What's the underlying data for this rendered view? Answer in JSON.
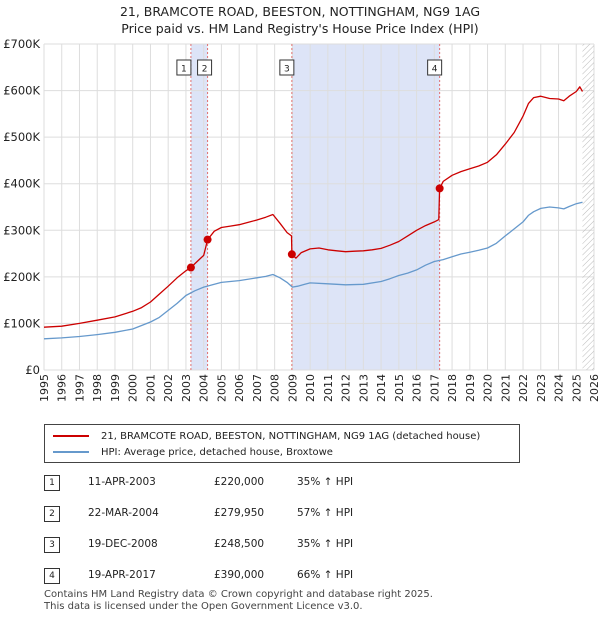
{
  "title_line1": "21, BRAMCOTE ROAD, BEESTON, NOTTINGHAM, NG9 1AG",
  "title_line2": "Price paid vs. HM Land Registry's House Price Index (HPI)",
  "chart_data": {
    "type": "line",
    "title": "21, BRAMCOTE ROAD, BEESTON, NOTTINGHAM, NG9 1AG — Price paid vs. HM Land Registry's House Price Index (HPI)",
    "xlim": [
      1995,
      2026
    ],
    "ylim": [
      0,
      700000
    ],
    "y_ticks": [
      0,
      100000,
      200000,
      300000,
      400000,
      500000,
      600000,
      700000
    ],
    "y_tick_labels": [
      "£0",
      "£100K",
      "£200K",
      "£300K",
      "£400K",
      "£500K",
      "£600K",
      "£700K"
    ],
    "x_ticks": [
      1995,
      1996,
      1997,
      1998,
      1999,
      2000,
      2001,
      2002,
      2003,
      2004,
      2005,
      2006,
      2007,
      2008,
      2009,
      2010,
      2011,
      2012,
      2013,
      2014,
      2015,
      2016,
      2017,
      2018,
      2019,
      2020,
      2021,
      2022,
      2023,
      2024,
      2025,
      2026
    ],
    "x_tick_labels": [
      "1995",
      "1996",
      "1997",
      "1998",
      "1999",
      "2000",
      "2001",
      "2002",
      "2003",
      "2004",
      "2005",
      "2006",
      "2007",
      "2008",
      "2009",
      "2010",
      "2011",
      "2012",
      "2013",
      "2014",
      "2015",
      "2016",
      "2017",
      "2018",
      "2019",
      "2020",
      "2021",
      "2022",
      "2023",
      "2024",
      "2025",
      "2026"
    ],
    "grid": true,
    "series": [
      {
        "name": "21, BRAMCOTE ROAD, BEESTON, NOTTINGHAM, NG9 1AG (detached house)",
        "color": "#cc0000",
        "x": [
          1995.0,
          1996.0,
          1997.0,
          1998.0,
          1999.0,
          2000.0,
          2000.5,
          2001.0,
          2001.5,
          2002.0,
          2002.5,
          2003.0,
          2003.28,
          2003.6,
          2004.0,
          2004.22,
          2004.6,
          2005.0,
          2005.5,
          2006.0,
          2006.5,
          2007.0,
          2007.5,
          2007.9,
          2008.3,
          2008.7,
          2008.95,
          2008.97,
          2009.2,
          2009.5,
          2010.0,
          2010.5,
          2011.0,
          2011.5,
          2012.0,
          2012.5,
          2013.0,
          2013.5,
          2014.0,
          2014.5,
          2015.0,
          2015.5,
          2016.0,
          2016.5,
          2017.0,
          2017.25,
          2017.3,
          2017.5,
          2018.0,
          2018.5,
          2019.0,
          2019.5,
          2020.0,
          2020.5,
          2021.0,
          2021.5,
          2022.0,
          2022.3,
          2022.6,
          2023.0,
          2023.5,
          2024.0,
          2024.3,
          2024.6,
          2025.0,
          2025.2,
          2025.35
        ],
        "values": [
          92000,
          94000,
          100000,
          107000,
          114000,
          126000,
          134000,
          146000,
          163000,
          180000,
          198000,
          213000,
          220000,
          232000,
          246000,
          279950,
          298000,
          306000,
          309000,
          312000,
          317000,
          322000,
          328000,
          334000,
          315000,
          295000,
          288000,
          248500,
          240000,
          252000,
          260000,
          262000,
          258000,
          256000,
          254000,
          255000,
          256000,
          258000,
          261000,
          268000,
          276000,
          288000,
          300000,
          310000,
          318000,
          323000,
          390000,
          405000,
          418000,
          426000,
          432000,
          438000,
          446000,
          462000,
          485000,
          510000,
          545000,
          572000,
          585000,
          588000,
          583000,
          582000,
          578000,
          588000,
          598000,
          608000,
          598000
        ]
      },
      {
        "name": "HPI: Average price, detached house, Broxtowe",
        "color": "#6699cc",
        "x": [
          1995.0,
          1996.0,
          1997.0,
          1998.0,
          1999.0,
          2000.0,
          2001.0,
          2001.5,
          2002.0,
          2002.5,
          2003.0,
          2003.5,
          2004.0,
          2004.5,
          2005.0,
          2006.0,
          2007.0,
          2007.5,
          2007.9,
          2008.3,
          2008.7,
          2009.0,
          2009.3,
          2009.7,
          2010.0,
          2011.0,
          2012.0,
          2013.0,
          2014.0,
          2014.5,
          2015.0,
          2015.5,
          2016.0,
          2016.5,
          2017.0,
          2017.5,
          2018.0,
          2018.5,
          2019.0,
          2019.5,
          2020.0,
          2020.5,
          2021.0,
          2021.5,
          2022.0,
          2022.3,
          2022.6,
          2023.0,
          2023.5,
          2024.0,
          2024.3,
          2024.6,
          2025.0,
          2025.35
        ],
        "values": [
          67000,
          69000,
          72000,
          76000,
          81000,
          88000,
          103000,
          113000,
          128000,
          143000,
          160000,
          170000,
          178000,
          183000,
          188000,
          192000,
          198000,
          201000,
          205000,
          198000,
          188000,
          178000,
          180000,
          184000,
          187000,
          185000,
          183000,
          184000,
          190000,
          196000,
          203000,
          208000,
          215000,
          225000,
          233000,
          237000,
          243000,
          249000,
          253000,
          257000,
          262000,
          272000,
          288000,
          303000,
          318000,
          332000,
          340000,
          347000,
          350000,
          348000,
          346000,
          351000,
          357000,
          360000
        ]
      }
    ],
    "sales": [
      {
        "id": "1",
        "x": 2003.28,
        "value": 220000
      },
      {
        "id": "2",
        "x": 2004.22,
        "value": 279950
      },
      {
        "id": "3",
        "x": 2008.97,
        "value": 248500
      },
      {
        "id": "4",
        "x": 2017.3,
        "value": 390000
      }
    ]
  },
  "legend": {
    "property_label": "21, BRAMCOTE ROAD, BEESTON, NOTTINGHAM, NG9 1AG (detached house)",
    "hpi_label": "HPI: Average price, detached house, Broxtowe"
  },
  "transactions": [
    {
      "num": "1",
      "date": "11-APR-2003",
      "price": "£220,000",
      "pct": "35% ↑ HPI"
    },
    {
      "num": "2",
      "date": "22-MAR-2004",
      "price": "£279,950",
      "pct": "57% ↑ HPI"
    },
    {
      "num": "3",
      "date": "19-DEC-2008",
      "price": "£248,500",
      "pct": "35% ↑ HPI"
    },
    {
      "num": "4",
      "date": "19-APR-2017",
      "price": "£390,000",
      "pct": "66% ↑ HPI"
    }
  ],
  "footer": {
    "line1": "Contains HM Land Registry data © Crown copyright and database right 2025.",
    "line2": "This data is licensed under the Open Government Licence v3.0."
  },
  "colors": {
    "property": "#cc0000",
    "hpi": "#6699cc",
    "shade": "#dde4f7",
    "grid": "#dddddd",
    "marker_line": "#e07070"
  }
}
